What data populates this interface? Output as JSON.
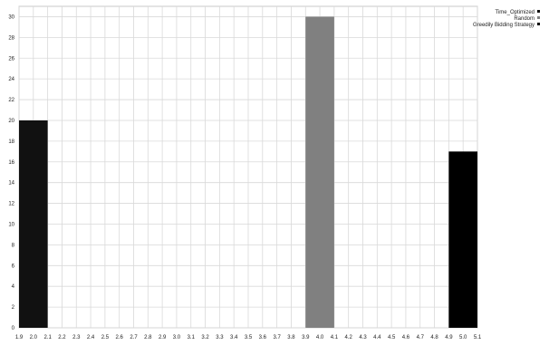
{
  "chart_data": {
    "type": "bar",
    "title": "",
    "xlabel": "",
    "ylabel": "",
    "xlim": [
      1.9,
      5.1
    ],
    "ylim": [
      0,
      31
    ],
    "grid": true,
    "legend_position": "top-right",
    "x_ticks": [
      "1.9",
      "2.0",
      "2.1",
      "2.2",
      "2.3",
      "2.4",
      "2.5",
      "2.6",
      "2.7",
      "2.8",
      "2.9",
      "3.0",
      "3.1",
      "3.2",
      "3.3",
      "3.4",
      "3.5",
      "3.6",
      "3.7",
      "3.8",
      "3.9",
      "4.0",
      "4.1",
      "4.2",
      "4.3",
      "4.4",
      "4.5",
      "4.6",
      "4.7",
      "4.8",
      "4.9",
      "5.0",
      "5.1"
    ],
    "y_ticks": [
      "0",
      "2",
      "4",
      "6",
      "8",
      "10",
      "12",
      "14",
      "16",
      "18",
      "20",
      "22",
      "24",
      "26",
      "28",
      "30"
    ],
    "bar_width": 0.2,
    "series": [
      {
        "name": "Time_Optimized",
        "color": "#111111",
        "x": [
          2.0
        ],
        "values": [
          20
        ]
      },
      {
        "name": "Random",
        "color": "#808080",
        "x": [
          4.0
        ],
        "values": [
          30
        ]
      },
      {
        "name": "Greedily Bidding Strategy",
        "color": "#000000",
        "x": [
          5.0
        ],
        "values": [
          17
        ]
      }
    ]
  }
}
